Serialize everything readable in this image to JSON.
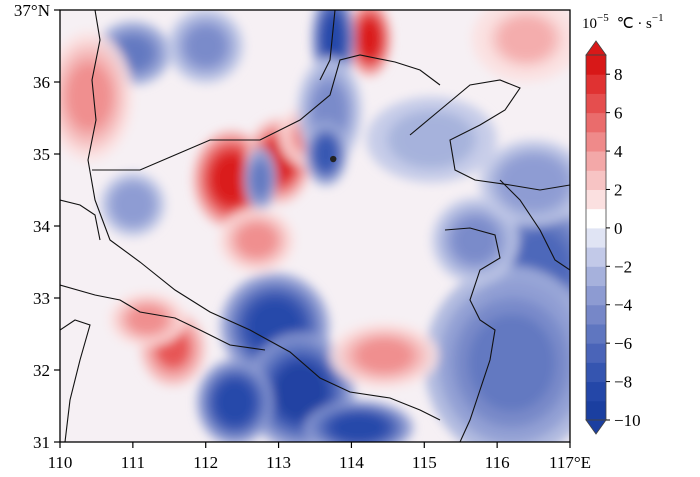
{
  "chart_data": {
    "type": "heatmap",
    "title": "",
    "colorbar_unit_prefix": "10",
    "colorbar_unit_exponent": "−5",
    "colorbar_unit_rest": "℃ · s",
    "colorbar_unit_rest_exponent": "−1",
    "xlim": [
      110,
      117
    ],
    "ylim": [
      31,
      37
    ],
    "x_ticks": [
      {
        "value": 110,
        "label": "110"
      },
      {
        "value": 111,
        "label": "111"
      },
      {
        "value": 112,
        "label": "112"
      },
      {
        "value": 113,
        "label": "113"
      },
      {
        "value": 114,
        "label": "114"
      },
      {
        "value": 115,
        "label": "115"
      },
      {
        "value": 116,
        "label": "116"
      },
      {
        "value": 117,
        "label": "117°E"
      }
    ],
    "y_ticks": [
      {
        "value": 31,
        "label": "31"
      },
      {
        "value": 32,
        "label": "32"
      },
      {
        "value": 33,
        "label": "33"
      },
      {
        "value": 34,
        "label": "34"
      },
      {
        "value": 35,
        "label": "35"
      },
      {
        "value": 36,
        "label": "36"
      },
      {
        "value": 37,
        "label": "37°N"
      }
    ],
    "colorbar": {
      "min": -10,
      "max": 9,
      "levels": [
        -10,
        -9,
        -8,
        -7,
        -6,
        -5,
        -4,
        -3,
        -2,
        -1,
        0,
        1,
        2,
        3,
        4,
        5,
        6,
        7,
        8,
        9
      ],
      "colors": [
        "#1b3fa0",
        "#2447a8",
        "#3555b0",
        "#4a64b8",
        "#5f76c0",
        "#7687c8",
        "#8d9bd2",
        "#a6b1dc",
        "#c2c9e8",
        "#e0e4f4",
        "#ffffff",
        "#fbe0e0",
        "#f7c4c4",
        "#f3a8a8",
        "#ef8a8a",
        "#ea6c6c",
        "#e54e4e",
        "#e03232",
        "#d81818"
      ],
      "tick_values": [
        -10,
        -8,
        -6,
        -4,
        -2,
        0,
        2,
        4,
        6,
        8
      ],
      "tick_labels": [
        "−10",
        "−8",
        "−6",
        "−4",
        "−2",
        "0",
        "2",
        "4",
        "6",
        "8"
      ]
    },
    "blobs": [
      {
        "lon": 112.35,
        "lat": 34.65,
        "value": 9,
        "rx": 0.35,
        "ry": 0.45
      },
      {
        "lon": 113.0,
        "lat": 34.9,
        "value": 8,
        "rx": 0.3,
        "ry": 0.4
      },
      {
        "lon": 113.45,
        "lat": 35.25,
        "value": 5,
        "rx": 0.3,
        "ry": 0.3
      },
      {
        "lon": 114.25,
        "lat": 36.6,
        "value": 9,
        "rx": 0.2,
        "ry": 0.35
      },
      {
        "lon": 113.75,
        "lat": 36.6,
        "value": -9,
        "rx": 0.2,
        "ry": 0.45
      },
      {
        "lon": 113.7,
        "lat": 35.6,
        "value": -5,
        "rx": 0.3,
        "ry": 0.5
      },
      {
        "lon": 113.65,
        "lat": 35.0,
        "value": -8,
        "rx": 0.2,
        "ry": 0.3
      },
      {
        "lon": 112.75,
        "lat": 34.65,
        "value": -6,
        "rx": 0.15,
        "ry": 0.3
      },
      {
        "lon": 112.95,
        "lat": 32.6,
        "value": -9,
        "rx": 0.5,
        "ry": 0.5
      },
      {
        "lon": 113.3,
        "lat": 31.7,
        "value": -10,
        "rx": 0.5,
        "ry": 0.55
      },
      {
        "lon": 112.4,
        "lat": 31.55,
        "value": -9,
        "rx": 0.35,
        "ry": 0.4
      },
      {
        "lon": 114.1,
        "lat": 31.2,
        "value": -9,
        "rx": 0.5,
        "ry": 0.25
      },
      {
        "lon": 116.6,
        "lat": 33.4,
        "value": -7,
        "rx": 0.55,
        "ry": 0.7
      },
      {
        "lon": 116.2,
        "lat": 32.1,
        "value": -6,
        "rx": 0.8,
        "ry": 0.9
      },
      {
        "lon": 115.7,
        "lat": 33.8,
        "value": -5,
        "rx": 0.4,
        "ry": 0.4
      },
      {
        "lon": 116.5,
        "lat": 34.6,
        "value": -4,
        "rx": 0.5,
        "ry": 0.4
      },
      {
        "lon": 111.55,
        "lat": 32.3,
        "value": 6,
        "rx": 0.3,
        "ry": 0.35
      },
      {
        "lon": 111.2,
        "lat": 32.7,
        "value": 4,
        "rx": 0.35,
        "ry": 0.25
      },
      {
        "lon": 112.7,
        "lat": 33.8,
        "value": 4,
        "rx": 0.35,
        "ry": 0.3
      },
      {
        "lon": 114.45,
        "lat": 32.2,
        "value": 4,
        "rx": 0.5,
        "ry": 0.3
      },
      {
        "lon": 111.0,
        "lat": 34.3,
        "value": -4,
        "rx": 0.3,
        "ry": 0.3
      },
      {
        "lon": 111.0,
        "lat": 36.4,
        "value": -6,
        "rx": 0.35,
        "ry": 0.3
      },
      {
        "lon": 112.0,
        "lat": 36.5,
        "value": -5,
        "rx": 0.35,
        "ry": 0.35
      },
      {
        "lon": 110.4,
        "lat": 35.8,
        "value": 4,
        "rx": 0.4,
        "ry": 0.6
      },
      {
        "lon": 115.1,
        "lat": 35.2,
        "value": -3,
        "rx": 0.6,
        "ry": 0.4
      },
      {
        "lon": 116.4,
        "lat": 36.6,
        "value": 3,
        "rx": 0.5,
        "ry": 0.4
      }
    ],
    "point_marker": {
      "lon": 113.75,
      "lat": 34.93
    }
  }
}
